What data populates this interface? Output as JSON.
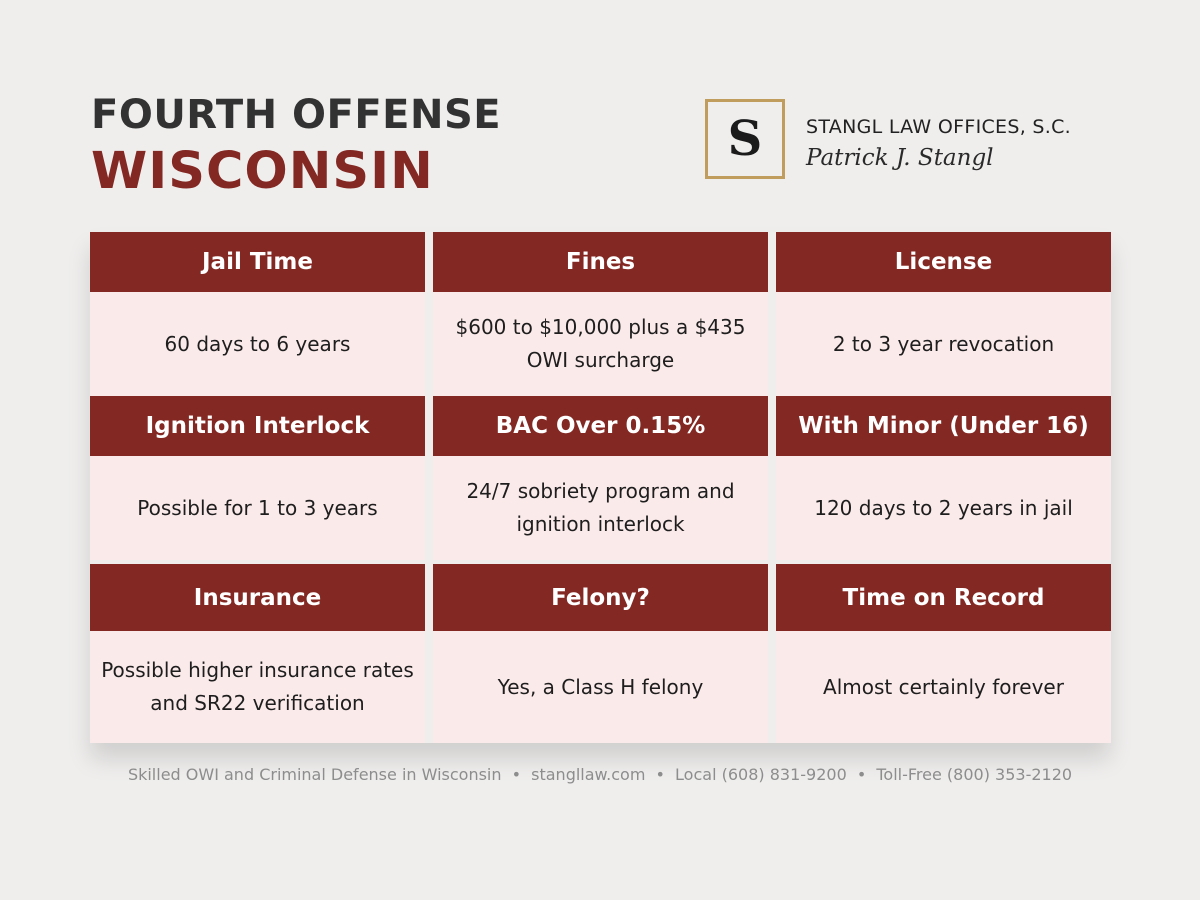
{
  "header": {
    "title_line1": "FOURTH OFFENSE",
    "title_line2": "WISCONSIN"
  },
  "logo": {
    "monogram": "S",
    "firm_name": "STANGL LAW OFFICES, S.C.",
    "signature": "Patrick J. Stangl",
    "border_color": "#c09d5c"
  },
  "table": {
    "cells": [
      {
        "heading": "Jail Time",
        "value": "60 days to 6 years"
      },
      {
        "heading": "Fines",
        "value": "$600 to $10,000 plus a $435 OWI surcharge"
      },
      {
        "heading": "License",
        "value": "2 to 3 year revocation"
      },
      {
        "heading": "Ignition Interlock",
        "value": "Possible for 1 to 3 years"
      },
      {
        "heading": "BAC Over 0.15%",
        "value": "24/7 sobriety program and ignition interlock"
      },
      {
        "heading": "With Minor (Under 16)",
        "value": "120 days to 2 years in jail"
      },
      {
        "heading": "Insurance",
        "value": "Possible higher insurance rates and SR22 verification"
      },
      {
        "heading": "Felony?",
        "value": "Yes, a Class H felony"
      },
      {
        "heading": "Time on Record",
        "value": "Almost certainly forever"
      }
    ]
  },
  "footer": {
    "items": [
      "Skilled OWI and Criminal Defense in Wisconsin",
      "stangllaw.com",
      "Local (608) 831-9200",
      "Toll-Free (800) 353-2120"
    ],
    "separator": "•"
  },
  "colors": {
    "background": "#efeeed",
    "header_red": "#832823",
    "cell_pink": "#fbeaea",
    "title_dark": "#323232",
    "footer_gray": "#8d8d8d"
  }
}
